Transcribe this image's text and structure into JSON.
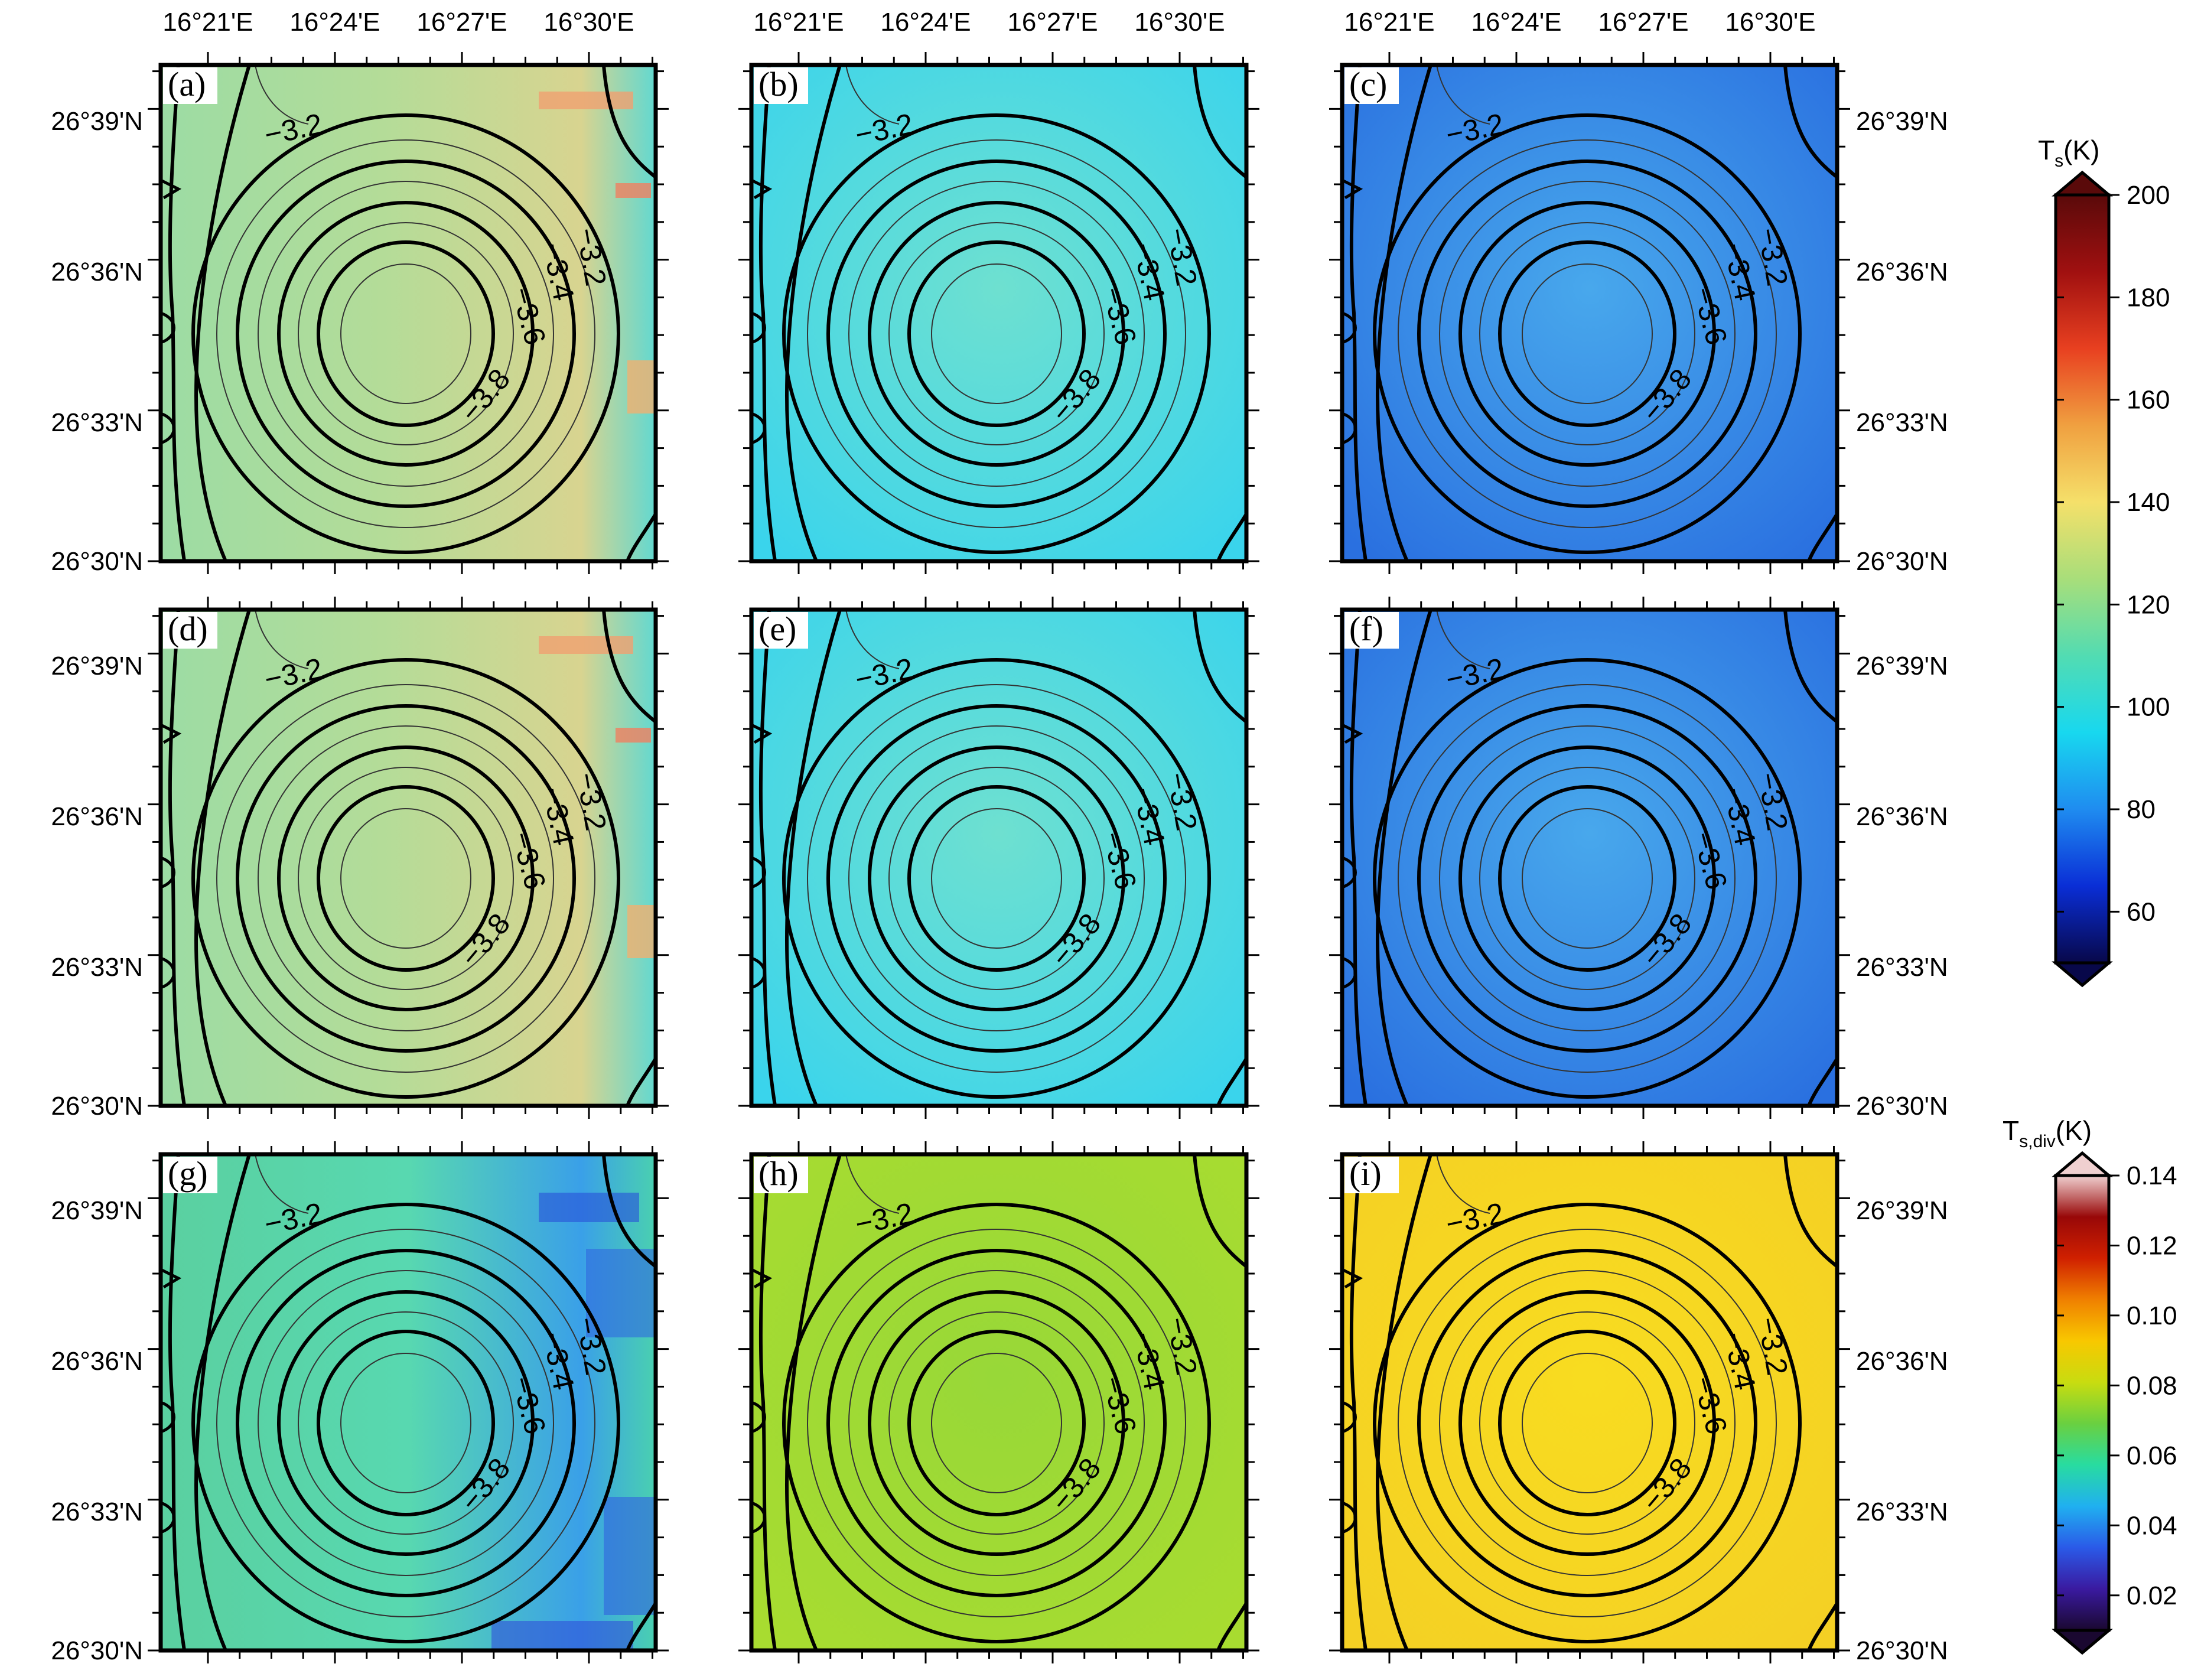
{
  "chart_data": {
    "type": "heatmap",
    "description_text": "",
    "x_ticks": [
      "16°21'E",
      "16°24'E",
      "16°27'E",
      "16°30'E"
    ],
    "y_ticks": [
      "26°39'N",
      "26°36'N",
      "26°33'N",
      "26°30'N"
    ],
    "contour_levels": [
      -3.2,
      -3.4,
      -3.6,
      -3.8
    ],
    "contour_labels": [
      "−3.2",
      "−3.2",
      "−3.4",
      "−3.6",
      "−3.8"
    ],
    "panels": [
      {
        "label": "(a)",
        "field": "Ts",
        "level_mean": 125
      },
      {
        "label": "(b)",
        "field": "Ts",
        "level_mean": 110
      },
      {
        "label": "(c)",
        "field": "Ts",
        "level_mean": 88
      },
      {
        "label": "(d)",
        "field": "Ts",
        "level_mean": 125
      },
      {
        "label": "(e)",
        "field": "Ts",
        "level_mean": 110
      },
      {
        "label": "(f)",
        "field": "Ts",
        "level_mean": 88
      },
      {
        "label": "(g)",
        "field": "Ts_div",
        "level_mean": 0.05
      },
      {
        "label": "(h)",
        "field": "Ts_div",
        "level_mean": 0.07
      },
      {
        "label": "(i)",
        "field": "Ts_div",
        "level_mean": 0.085
      }
    ],
    "colorbars": [
      {
        "title_main": "T",
        "title_sub": "s",
        "title_unit": "(K)",
        "ticks": [
          "200",
          "180",
          "160",
          "140",
          "120",
          "100",
          "80",
          "60"
        ],
        "range": [
          50,
          200
        ],
        "stops": [
          "#08084a",
          "#0a2ed6",
          "#1f8cf0",
          "#18d8ef",
          "#52dcb2",
          "#a8de7a",
          "#f5e06a",
          "#f0a040",
          "#e84020",
          "#a01010",
          "#5a0a0a"
        ]
      },
      {
        "title_main": "T",
        "title_sub": "s,div",
        "title_unit": "(K)",
        "ticks": [
          "0.14",
          "0.12",
          "0.10",
          "0.08",
          "0.06",
          "0.04",
          "0.02"
        ],
        "range": [
          0.01,
          0.14
        ],
        "stops": [
          "#1a0830",
          "#3a1aa0",
          "#2a5ae8",
          "#20b0f0",
          "#28dca0",
          "#6ad040",
          "#c8dc10",
          "#f8c800",
          "#f08000",
          "#d02000",
          "#980808",
          "#f0d0d0"
        ]
      }
    ]
  }
}
